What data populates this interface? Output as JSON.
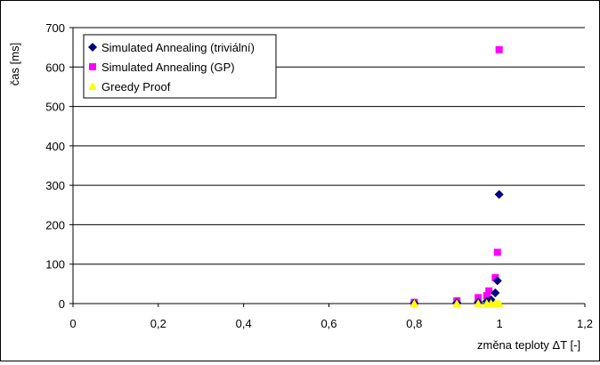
{
  "chart_data": {
    "type": "scatter",
    "title": "",
    "xlabel": "změna teploty ΔT [-]",
    "ylabel": "čas [ms]",
    "xlim": [
      0,
      1.2
    ],
    "ylim": [
      0,
      700
    ],
    "x_ticks": [
      "0",
      "0,2",
      "0,4",
      "0,6",
      "0,8",
      "1",
      "1,2"
    ],
    "y_ticks": [
      "0",
      "100",
      "200",
      "300",
      "400",
      "500",
      "600",
      "700"
    ],
    "grid": "horizontal",
    "legend_position": "top-left",
    "series": [
      {
        "name": "Simulated Annealing (triviální)",
        "color": "#000080",
        "marker": "diamond",
        "points": [
          [
            0.8,
            1
          ],
          [
            0.9,
            2
          ],
          [
            0.95,
            3
          ],
          [
            0.97,
            6
          ],
          [
            0.98,
            10
          ],
          [
            0.99,
            27
          ],
          [
            0.995,
            58
          ],
          [
            0.999,
            277
          ]
        ]
      },
      {
        "name": "Simulated Annealing (GP)",
        "color": "#ff00ff",
        "marker": "square",
        "points": [
          [
            0.8,
            3
          ],
          [
            0.9,
            7
          ],
          [
            0.95,
            15
          ],
          [
            0.97,
            20
          ],
          [
            0.975,
            32
          ],
          [
            0.99,
            66
          ],
          [
            0.995,
            130
          ],
          [
            0.999,
            644
          ]
        ]
      },
      {
        "name": "Greedy Proof",
        "color": "#ffff00",
        "marker": "triangle",
        "points": [
          [
            0.8,
            0
          ],
          [
            0.9,
            0
          ],
          [
            0.95,
            0
          ],
          [
            0.97,
            0
          ],
          [
            0.98,
            0
          ],
          [
            0.99,
            0
          ],
          [
            0.995,
            0
          ],
          [
            0.999,
            0
          ]
        ]
      }
    ]
  }
}
